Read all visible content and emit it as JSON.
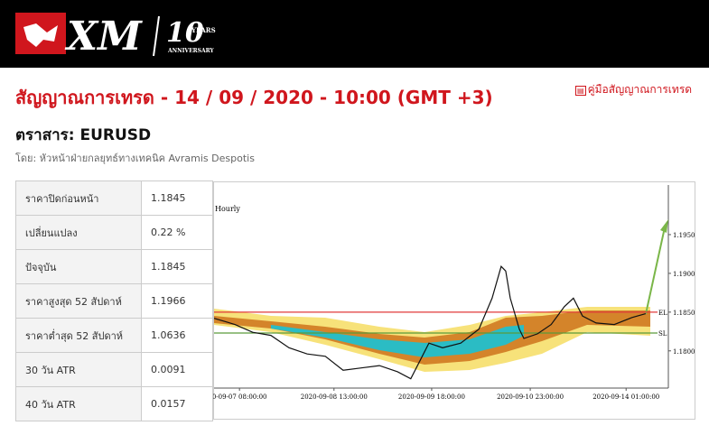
{
  "header": {
    "logo": {
      "brand": "XM",
      "number": "10",
      "years": "YEARS",
      "anniversary": "ANNIVERSARY"
    }
  },
  "title": "สัญญาณการเทรด - 14 / 09 / 2020 - 10:00 (GMT +3)",
  "guide_link": "คู่มือสัญญาณการเทรด",
  "instrument": "ตราสาร: EURUSD",
  "author": "โดย: หัวหน้าฝ่ายกลยุทธ์ทางเทคนิค Avramis Despotis",
  "table": {
    "rows": [
      [
        "ราคาปิดก่อนหน้า",
        "1.1845"
      ],
      [
        "เปลี่ยนแปลง",
        "0.22 %"
      ],
      [
        "ปัจจุบัน",
        "1.1845"
      ],
      [
        "ราคาสูงสุด 52 สัปดาห์",
        "1.1966"
      ],
      [
        "ราคาต่ำสุด 52 สัปดาห์",
        "1.0636"
      ],
      [
        "30 วัน ATR",
        "0.0091"
      ],
      [
        "40 วัน ATR",
        "0.0157"
      ]
    ]
  },
  "chart_data": {
    "type": "line",
    "subtitle": "Hourly",
    "x": [
      0,
      4.6,
      8.5,
      12.5,
      16.5,
      20.5,
      24.5,
      28.4,
      32.4,
      36.4,
      40.4,
      43.3,
      45.3,
      47.3,
      50.3,
      54.3,
      58.3,
      61.2,
      63.2,
      64.2,
      65.2,
      67.2,
      68.2,
      71.2,
      74.2,
      77.1,
      79.1,
      81.1,
      84.1,
      88.1,
      92.0,
      95.0
    ],
    "series": [
      {
        "color": "#111111",
        "values": [
          1.1842,
          1.1834,
          1.1824,
          1.182,
          1.1804,
          1.1796,
          1.1793,
          1.1775,
          1.1778,
          1.1781,
          1.1773,
          1.1764,
          1.1787,
          1.181,
          1.1804,
          1.181,
          1.1828,
          1.1868,
          1.1909,
          1.1903,
          1.1868,
          1.1828,
          1.1816,
          1.1822,
          1.1834,
          1.1857,
          1.1868,
          1.1845,
          1.1836,
          1.1834,
          1.1843,
          1.1848
        ]
      }
    ],
    "xlim": [
      0,
      100
    ],
    "xticks": [
      {
        "value": 5.6,
        "label": "0-09-07 08:00:00"
      },
      {
        "value": 26.4,
        "label": "2020-09-08 13:00:00"
      },
      {
        "value": 47.9,
        "label": "2020-09-09 18:00:00"
      },
      {
        "value": 69.6,
        "label": "2020-09-10 23:00:00"
      },
      {
        "value": 90.7,
        "label": "2020-09-14 01:00:00"
      }
    ],
    "ylim": [
      1.1752,
      1.2014
    ],
    "yticks": [
      {
        "value": 1.195,
        "label": "1.1950"
      },
      {
        "value": 1.19,
        "label": "1.1900"
      },
      {
        "value": 1.185,
        "label": "1.1850"
      },
      {
        "value": 1.18,
        "label": "1.1800"
      }
    ],
    "levels": [
      {
        "label": "EL",
        "value": 1.185,
        "color": "#e03a3a"
      },
      {
        "label": "SL",
        "value": 1.1823,
        "color": "#5a9a3a"
      }
    ]
  }
}
